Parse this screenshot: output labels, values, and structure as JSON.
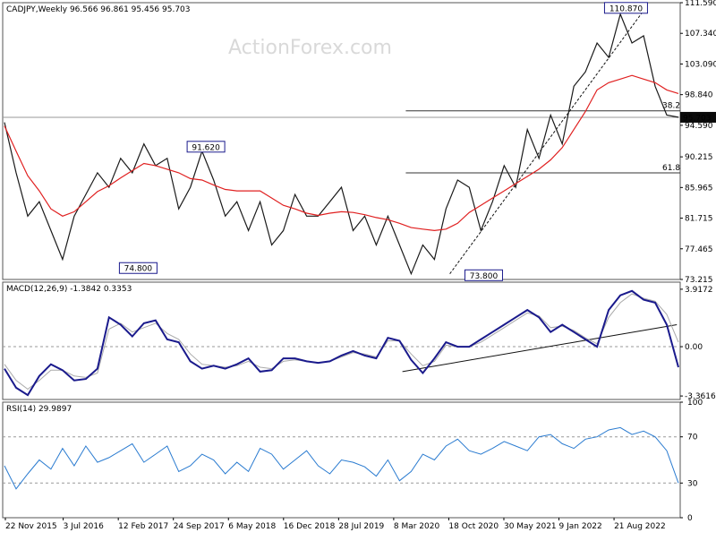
{
  "chart_data": [
    {
      "type": "line",
      "panel": "price",
      "title": "CADJPY,Weekly  96.566 96.861 95.456 95.703",
      "watermark": "ActionForex.com",
      "y_ticks": [
        "111.590",
        "107.340",
        "103.090",
        "98.840",
        "94.590",
        "90.215",
        "85.965",
        "81.715",
        "77.465",
        "73.215"
      ],
      "ylim": [
        73.215,
        111.59
      ],
      "last_price_label": "95.703",
      "series": [
        {
          "name": "price",
          "color": "#1a1a1a",
          "values": [
            95,
            88,
            82,
            84,
            80,
            76,
            82,
            85,
            88,
            86,
            90,
            88,
            92,
            89,
            90,
            83,
            86,
            91,
            87,
            82,
            84,
            80,
            84,
            78,
            80,
            85,
            82,
            82,
            84,
            86,
            80,
            82,
            78,
            82,
            78,
            74,
            78,
            76,
            83,
            87,
            86,
            80,
            84,
            89,
            86,
            94,
            90,
            96,
            92,
            100,
            102,
            106,
            104,
            110,
            106,
            107,
            100,
            96,
            95.7
          ]
        },
        {
          "name": "ma",
          "color": "#e02020",
          "values": [
            94.5,
            91,
            87.6,
            85.5,
            83,
            82,
            82.6,
            84,
            85.4,
            86.2,
            87.3,
            88.3,
            89.3,
            89,
            88.5,
            88,
            87.2,
            87,
            86.3,
            85.7,
            85.5,
            85.5,
            85.5,
            84.5,
            83.5,
            83,
            82.4,
            82.1,
            82.4,
            82.6,
            82.5,
            82.2,
            81.8,
            81.5,
            81,
            80.4,
            80.2,
            80,
            80.2,
            81,
            82.5,
            83.5,
            84.5,
            85.5,
            86.5,
            87.5,
            88.5,
            89.8,
            91.5,
            94,
            96.5,
            99.5,
            100.5,
            101,
            101.5,
            101,
            100.5,
            99.5,
            99
          ]
        }
      ],
      "annotations": [
        {
          "text": "91.620",
          "x": 0.3,
          "y": 91.62,
          "boxed": true
        },
        {
          "text": "74.800",
          "x": 0.2,
          "y": 74.8,
          "boxed": true
        },
        {
          "text": "73.800",
          "x": 0.71,
          "y": 73.8,
          "boxed": true
        },
        {
          "text": "110.870",
          "x": 0.92,
          "y": 110.87,
          "boxed": true
        }
      ],
      "fib_levels": [
        {
          "label": "38.2",
          "value": 96.6
        },
        {
          "label": "61.8",
          "value": 88.0
        }
      ],
      "hline": 95.7,
      "trendline": {
        "from": [
          0.66,
          74.0
        ],
        "to": [
          0.95,
          111.0
        ]
      }
    },
    {
      "type": "line",
      "panel": "macd",
      "title": "MACD(12,26,9) -1.3842 0.3353",
      "y_ticks": [
        "3.9172",
        "0.00",
        "-3.3616"
      ],
      "ylim": [
        -3.6,
        4.4
      ],
      "series": [
        {
          "name": "macd",
          "color": "#1a1a8c",
          "values": [
            -1.5,
            -2.8,
            -3.3,
            -2.0,
            -1.2,
            -1.6,
            -2.3,
            -2.2,
            -1.5,
            2.0,
            1.5,
            0.7,
            1.6,
            1.8,
            0.5,
            0.3,
            -1.0,
            -1.5,
            -1.3,
            -1.5,
            -1.2,
            -0.8,
            -1.7,
            -1.6,
            -0.8,
            -0.8,
            -1.0,
            -1.1,
            -1.0,
            -0.6,
            -0.3,
            -0.6,
            -0.8,
            0.6,
            0.4,
            -0.9,
            -1.8,
            -0.8,
            0.3,
            0.0,
            0.0,
            0.5,
            1.0,
            1.5,
            2.0,
            2.5,
            2.0,
            1.0,
            1.5,
            1.0,
            0.5,
            0.0,
            2.5,
            3.5,
            3.8,
            3.2,
            3.0,
            1.5,
            -1.4
          ]
        },
        {
          "name": "signal",
          "color": "#aaaaaa",
          "values": [
            -1.2,
            -2.3,
            -2.9,
            -2.3,
            -1.6,
            -1.6,
            -2.0,
            -2.1,
            -1.8,
            1.2,
            1.6,
            1.0,
            1.3,
            1.6,
            0.9,
            0.5,
            -0.5,
            -1.2,
            -1.3,
            -1.4,
            -1.3,
            -1.0,
            -1.4,
            -1.5,
            -1.0,
            -0.9,
            -1.0,
            -1.1,
            -1.0,
            -0.7,
            -0.4,
            -0.5,
            -0.7,
            0.4,
            0.4,
            -0.5,
            -1.3,
            -1.0,
            0.1,
            0.0,
            0.0,
            0.3,
            0.8,
            1.3,
            1.8,
            2.3,
            2.1,
            1.3,
            1.4,
            1.1,
            0.6,
            0.2,
            2.0,
            3.0,
            3.6,
            3.3,
            3.1,
            2.2,
            0.3
          ]
        }
      ],
      "trendline": {
        "from": [
          0.59,
          -1.7
        ],
        "to": [
          0.995,
          1.5
        ]
      }
    },
    {
      "type": "line",
      "panel": "rsi",
      "title": "RSI(14) 29.9897",
      "y_ticks": [
        "100",
        "70",
        "30",
        "0"
      ],
      "ylim": [
        0,
        100
      ],
      "levels": [
        70,
        30
      ],
      "series": [
        {
          "name": "rsi",
          "color": "#2a7bd0",
          "values": [
            45,
            25,
            38,
            50,
            42,
            60,
            45,
            62,
            48,
            52,
            58,
            64,
            48,
            55,
            62,
            40,
            45,
            55,
            50,
            38,
            48,
            40,
            60,
            55,
            42,
            50,
            58,
            45,
            38,
            50,
            48,
            44,
            36,
            50,
            32,
            40,
            55,
            50,
            62,
            68,
            58,
            55,
            60,
            66,
            62,
            58,
            70,
            72,
            64,
            60,
            68,
            70,
            76,
            78,
            72,
            75,
            70,
            58,
            30
          ]
        }
      ]
    }
  ],
  "x_axis": {
    "tick_labels": [
      "22 Nov 2015",
      "3 Jul 2016",
      "12 Feb 2017",
      "24 Sep 2017",
      "6 May 2018",
      "16 Dec 2018",
      "28 Jul 2019",
      "8 Mar 2020",
      "18 Oct 2020",
      "30 May 2021",
      "9 Jan 2022",
      "21 Aug 2022"
    ]
  },
  "colors": {
    "price": "#1a1a1a",
    "ma": "#e02020",
    "macd": "#1a1a8c",
    "signal": "#aaaaaa",
    "rsi": "#2a7bd0",
    "border": "#555555",
    "last_label_bg": "#0a0a0a"
  }
}
